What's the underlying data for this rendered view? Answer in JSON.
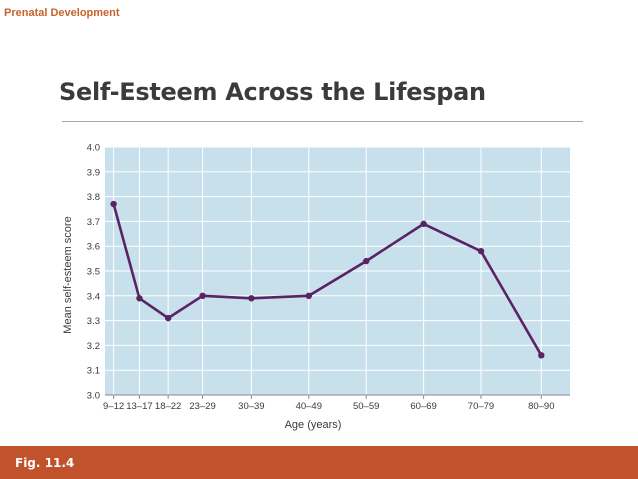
{
  "header": {
    "label": "Prenatal Development"
  },
  "slide": {
    "title": "Self-Esteem Across the Lifespan"
  },
  "footer": {
    "fig_label": "Fig. 11.4"
  },
  "colors": {
    "accent": "#c0532b",
    "plot_bg": "#c7e0ec",
    "grid": "#ffffff",
    "line": "#5a2364",
    "title": "#3b3b3b"
  },
  "chart_data": {
    "type": "line",
    "title": "",
    "xlabel": "Age (years)",
    "ylabel": "Mean self-esteem score",
    "categories": [
      "9–12",
      "13–17",
      "18–22",
      "23–29",
      "30–39",
      "40–49",
      "50–59",
      "60–69",
      "70–79",
      "80–90"
    ],
    "x_positions": [
      10.5,
      15,
      20,
      26,
      34.5,
      44.5,
      54.5,
      64.5,
      74.5,
      85
    ],
    "xlim": [
      9,
      90
    ],
    "ylim": [
      3.0,
      4.0
    ],
    "yticks": [
      3.0,
      3.1,
      3.2,
      3.3,
      3.4,
      3.5,
      3.6,
      3.7,
      3.8,
      3.9,
      4.0
    ],
    "ytick_labels": [
      "3.0",
      "3.1",
      "3.2",
      "3.3",
      "3.4",
      "3.5",
      "3.6",
      "3.7",
      "3.8",
      "3.9",
      "4.0"
    ],
    "grid": true,
    "series": [
      {
        "name": "Mean self-esteem score",
        "values": [
          3.77,
          3.39,
          3.31,
          3.4,
          3.39,
          3.4,
          3.54,
          3.69,
          3.58,
          3.16
        ]
      }
    ]
  }
}
